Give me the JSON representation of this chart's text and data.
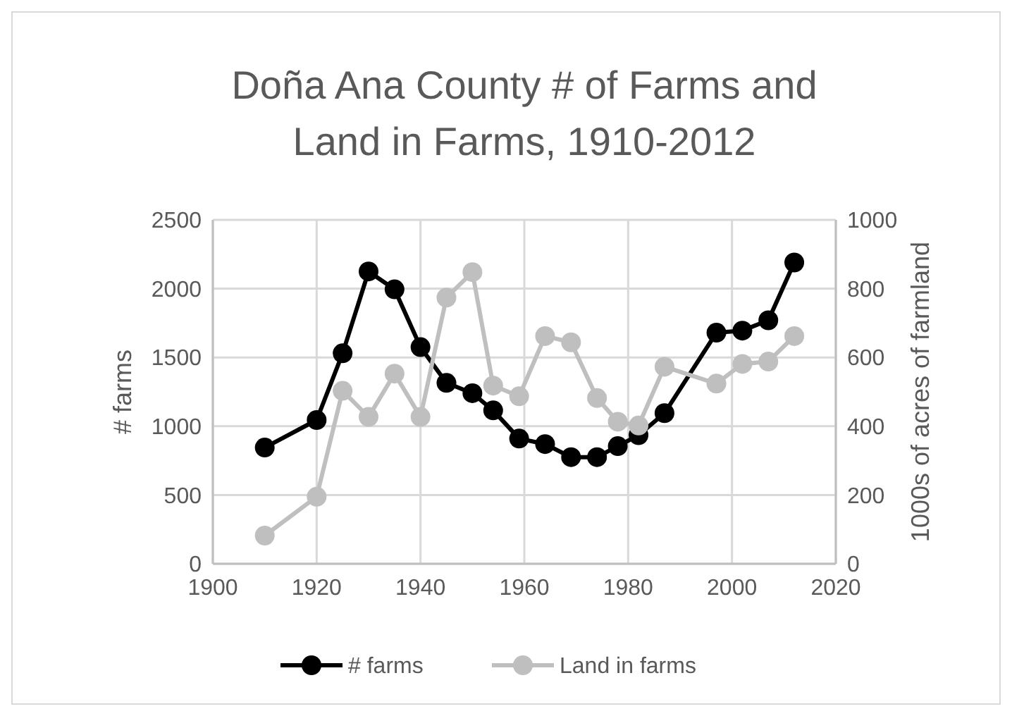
{
  "chart_data": {
    "type": "line",
    "title": "Doña Ana County # of Farms and Land in Farms, 1910-2012",
    "ylabel": "# farms",
    "y2label": "1000s of acres of farmland",
    "x": [
      1910,
      1920,
      1925,
      1930,
      1935,
      1940,
      1945,
      1950,
      1954,
      1959,
      1964,
      1969,
      1974,
      1978,
      1982,
      1987,
      1997,
      2002,
      2007,
      2012
    ],
    "series": [
      {
        "name": "# farms",
        "color": "#000000",
        "values": [
          845,
          1045,
          1530,
          2125,
          1995,
          1575,
          1315,
          1240,
          1115,
          910,
          870,
          775,
          775,
          855,
          935,
          1095,
          1680,
          1695,
          1770,
          2190
        ]
      },
      {
        "name": "Land in farms",
        "color": "#bfbfbf",
        "axis": "y2",
        "values": [
          82,
          195,
          503,
          427,
          553,
          427,
          774,
          848,
          518,
          487,
          662,
          644,
          482,
          413,
          402,
          573,
          524,
          581,
          588,
          662
        ]
      }
    ],
    "xlim": [
      1900,
      2020
    ],
    "xticks": [
      1900,
      1920,
      1940,
      1960,
      1980,
      2000,
      2020
    ],
    "ylim": [
      0,
      2500
    ],
    "yticks": [
      0,
      500,
      1000,
      1500,
      2000,
      2500
    ],
    "y2lim": [
      0,
      1000
    ],
    "y2ticks": [
      0,
      200,
      400,
      600,
      800,
      1000
    ],
    "grid": true,
    "legend": "bottom",
    "marker": "circle",
    "line_style": "solid"
  }
}
